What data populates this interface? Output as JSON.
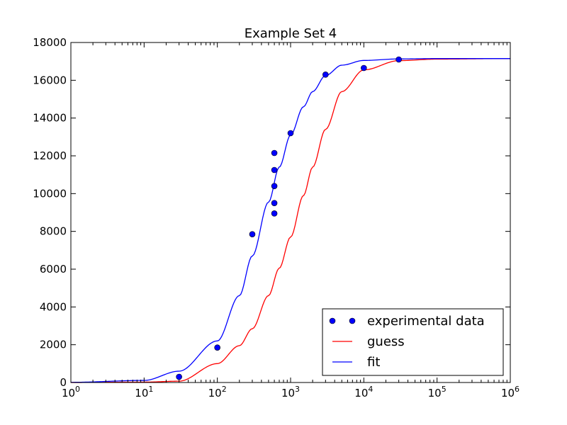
{
  "chart_data": {
    "type": "line",
    "title": "Example Set 4",
    "xlabel": "",
    "ylabel": "",
    "xscale": "log",
    "xlim": [
      1,
      1000000
    ],
    "ylim": [
      0,
      18000
    ],
    "grid": false,
    "legend_position": "lower-right",
    "x_tick_base": "10",
    "x_ticks": [
      {
        "value": 1,
        "exp": "0"
      },
      {
        "value": 10,
        "exp": "1"
      },
      {
        "value": 100,
        "exp": "2"
      },
      {
        "value": 1000,
        "exp": "3"
      },
      {
        "value": 10000,
        "exp": "4"
      },
      {
        "value": 100000,
        "exp": "5"
      },
      {
        "value": 1000000,
        "exp": "6"
      }
    ],
    "y_ticks": [
      0,
      2000,
      4000,
      6000,
      8000,
      10000,
      12000,
      14000,
      16000,
      18000
    ],
    "series": [
      {
        "name": "experimental data",
        "kind": "points",
        "color": "#0000ff",
        "x": [
          30,
          100,
          300,
          600,
          600,
          600,
          600,
          600,
          1000,
          3000,
          10000,
          30000
        ],
        "y": [
          300,
          1850,
          7850,
          8950,
          9500,
          10400,
          11250,
          12150,
          13200,
          16300,
          16650,
          17100
        ]
      },
      {
        "name": "guess",
        "kind": "line",
        "color": "#ff0000",
        "x": [
          1,
          10,
          30,
          100,
          200,
          300,
          500,
          700,
          1000,
          1500,
          2000,
          3000,
          5000,
          10000,
          30000,
          100000,
          1000000
        ],
        "y": [
          2,
          20,
          70,
          1000,
          1950,
          2850,
          4600,
          6050,
          7700,
          9900,
          11400,
          13400,
          15400,
          16550,
          17040,
          17120,
          17150
        ]
      },
      {
        "name": "fit",
        "kind": "line",
        "color": "#0000ff",
        "x": [
          1,
          10,
          30,
          100,
          200,
          300,
          500,
          700,
          1000,
          1500,
          2000,
          3000,
          5000,
          10000,
          30000,
          100000,
          1000000
        ],
        "y": [
          10,
          110,
          600,
          2200,
          4600,
          6700,
          9550,
          11400,
          13100,
          14600,
          15400,
          16250,
          16800,
          17050,
          17130,
          17150,
          17150
        ]
      }
    ]
  }
}
